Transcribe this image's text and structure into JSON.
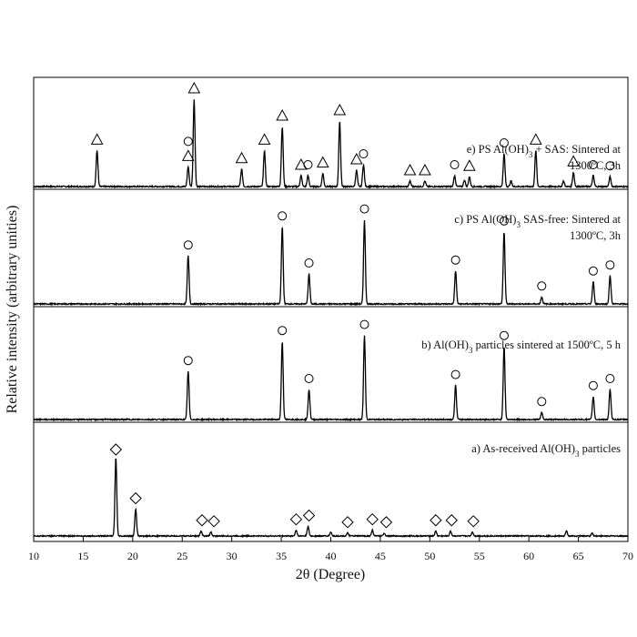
{
  "chart_data": {
    "type": "line",
    "title": "",
    "xlabel": "2θ (Degree)",
    "ylabel": "Relative intensity (arbitrary unities)",
    "xlim": [
      10,
      70
    ],
    "x_ticks": [
      10,
      15,
      20,
      25,
      30,
      35,
      40,
      45,
      50,
      55,
      60,
      65,
      70
    ],
    "grid": false,
    "series": [
      {
        "name": "e) PS Al(OH)3 + SAS: Sintered at 1300ºC, 3h",
        "label_lines": [
          {
            "segments": [
              {
                "t": "e) PS Al(OH)"
              },
              {
                "t": "3",
                "sub": true
              },
              {
                "t": " + SAS: Sintered at"
              }
            ]
          },
          {
            "segments": [
              {
                "t": "1300ºC, 3h"
              }
            ]
          }
        ],
        "peaks": [
          [
            16.4,
            0.33
          ],
          [
            25.6,
            0.18
          ],
          [
            26.2,
            0.8
          ],
          [
            31.0,
            0.16
          ],
          [
            33.3,
            0.33
          ],
          [
            35.1,
            0.55
          ],
          [
            37.0,
            0.1
          ],
          [
            37.7,
            0.1
          ],
          [
            39.2,
            0.12
          ],
          [
            40.9,
            0.6
          ],
          [
            42.6,
            0.15
          ],
          [
            43.3,
            0.2
          ],
          [
            48.0,
            0.05
          ],
          [
            49.5,
            0.05
          ],
          [
            52.5,
            0.1
          ],
          [
            53.5,
            0.06
          ],
          [
            54.0,
            0.09
          ],
          [
            57.5,
            0.3
          ],
          [
            58.2,
            0.05
          ],
          [
            60.7,
            0.33
          ],
          [
            63.5,
            0.05
          ],
          [
            64.5,
            0.13
          ],
          [
            66.5,
            0.1
          ],
          [
            68.2,
            0.09
          ]
        ],
        "triangle_markers": [
          16.4,
          25.6,
          26.2,
          31.0,
          33.3,
          35.1,
          37.0,
          39.2,
          40.9,
          42.6,
          48.0,
          49.5,
          54.0,
          60.7,
          64.5
        ],
        "circle_markers": [
          25.6,
          37.7,
          43.3,
          52.5,
          57.5,
          66.5,
          68.2
        ]
      },
      {
        "name": "c) PS Al(OH)3 SAS-free: Sintered at 1300ºC, 3h",
        "label_lines": [
          {
            "segments": [
              {
                "t": "c) PS Al(OH)"
              },
              {
                "t": "3",
                "sub": true
              },
              {
                "t": " SAS-free: Sintered at"
              }
            ]
          },
          {
            "segments": [
              {
                "t": "1300ºC, 3h"
              }
            ]
          }
        ],
        "peaks": [
          [
            25.6,
            0.48
          ],
          [
            35.1,
            0.77
          ],
          [
            37.8,
            0.3
          ],
          [
            43.4,
            0.84
          ],
          [
            52.6,
            0.33
          ],
          [
            57.5,
            0.72
          ],
          [
            61.3,
            0.07
          ],
          [
            66.5,
            0.22
          ],
          [
            68.2,
            0.28
          ]
        ],
        "circle_markers": [
          25.6,
          35.1,
          37.8,
          43.4,
          52.6,
          57.5,
          61.3,
          66.5,
          68.2
        ]
      },
      {
        "name": "b) Al(OH)3 particles sintered at 1500ºC, 5 h",
        "label_lines": [
          {
            "segments": [
              {
                "t": "b) Al(OH)"
              },
              {
                "t": "3",
                "sub": true
              },
              {
                "t": " particles sintered at 1500ºC, 5 h"
              }
            ]
          }
        ],
        "peaks": [
          [
            25.6,
            0.48
          ],
          [
            35.1,
            0.78
          ],
          [
            37.8,
            0.3
          ],
          [
            43.4,
            0.84
          ],
          [
            52.6,
            0.34
          ],
          [
            57.5,
            0.73
          ],
          [
            61.3,
            0.07
          ],
          [
            66.5,
            0.23
          ],
          [
            68.2,
            0.3
          ]
        ],
        "circle_markers": [
          25.6,
          35.1,
          37.8,
          43.4,
          52.6,
          57.5,
          61.3,
          66.5,
          68.2
        ]
      },
      {
        "name": "a) As-received Al(OH)3 particles",
        "label_lines": [
          {
            "segments": [
              {
                "t": "a) As-received Al(OH)"
              },
              {
                "t": "3",
                "sub": true
              },
              {
                "t": " particles"
              }
            ]
          }
        ],
        "peaks": [
          [
            18.3,
            0.82
          ],
          [
            20.3,
            0.28
          ],
          [
            26.9,
            0.05
          ],
          [
            27.9,
            0.04
          ],
          [
            36.5,
            0.06
          ],
          [
            37.7,
            0.1
          ],
          [
            40.0,
            0.04
          ],
          [
            41.7,
            0.03
          ],
          [
            44.2,
            0.06
          ],
          [
            45.4,
            0.03
          ],
          [
            50.6,
            0.05
          ],
          [
            52.1,
            0.05
          ],
          [
            54.3,
            0.04
          ],
          [
            63.8,
            0.05
          ],
          [
            66.4,
            0.03
          ]
        ],
        "diamond_markers": [
          18.3,
          20.3,
          27.0,
          28.2,
          36.5,
          37.8,
          41.7,
          44.2,
          45.6,
          50.6,
          52.2,
          54.4
        ]
      }
    ]
  }
}
